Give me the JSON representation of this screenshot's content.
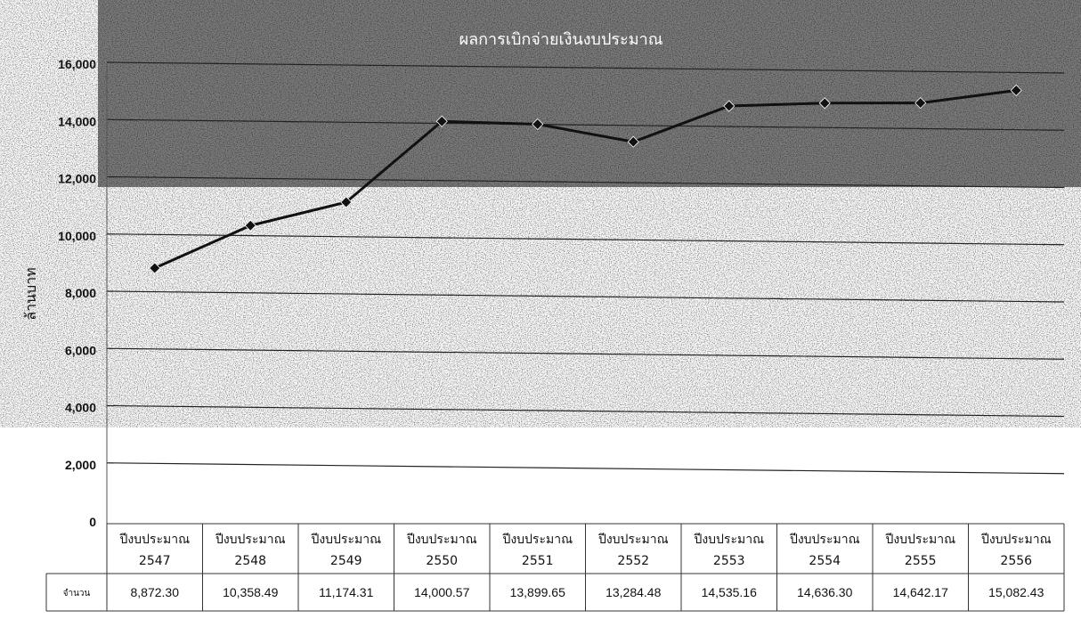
{
  "chart_data": {
    "type": "line",
    "title": "ผลการเบิกจ่ายเงินงบประมาณ",
    "ylabel": "ล้านบาท",
    "ylim": [
      0,
      16000
    ],
    "yticks": [
      "0",
      "2,000",
      "4,000",
      "6,000",
      "8,000",
      "10,000",
      "12,000",
      "14,000",
      "16,000"
    ],
    "ytick_values": [
      0,
      2000,
      4000,
      6000,
      8000,
      10000,
      12000,
      14000,
      16000
    ],
    "categories": [
      [
        "ปีงบประมาณ",
        "2547"
      ],
      [
        "ปีงบประมาณ",
        "2548"
      ],
      [
        "ปีงบประมาณ",
        "2549"
      ],
      [
        "ปีงบประมาณ",
        "2550"
      ],
      [
        "ปีงบประมาณ",
        "2551"
      ],
      [
        "ปีงบประมาณ",
        "2552"
      ],
      [
        "ปีงบประมาณ",
        "2553"
      ],
      [
        "ปีงบประมาณ",
        "2554"
      ],
      [
        "ปีงบประมาณ",
        "2555"
      ],
      [
        "ปีงบประมาณ",
        "2556"
      ]
    ],
    "series": [
      {
        "name": "จำนวน",
        "values": [
          8872.3,
          10358.49,
          11174.31,
          14000.57,
          13899.65,
          13284.48,
          14535.16,
          14636.3,
          14642.17,
          15082.43
        ],
        "labels": [
          "8,872.30",
          "10,358.49",
          "11,174.31",
          "14,000.57",
          "13,899.65",
          "13,284.48",
          "14,535.16",
          "14,636.30",
          "14,642.17",
          "15,082.43"
        ]
      }
    ],
    "grid": true,
    "legend": "data-table",
    "colors": {
      "line": "#111111",
      "marker": "#111111",
      "gridline": "#222222",
      "noise_dark": "#1e1e1e"
    }
  }
}
